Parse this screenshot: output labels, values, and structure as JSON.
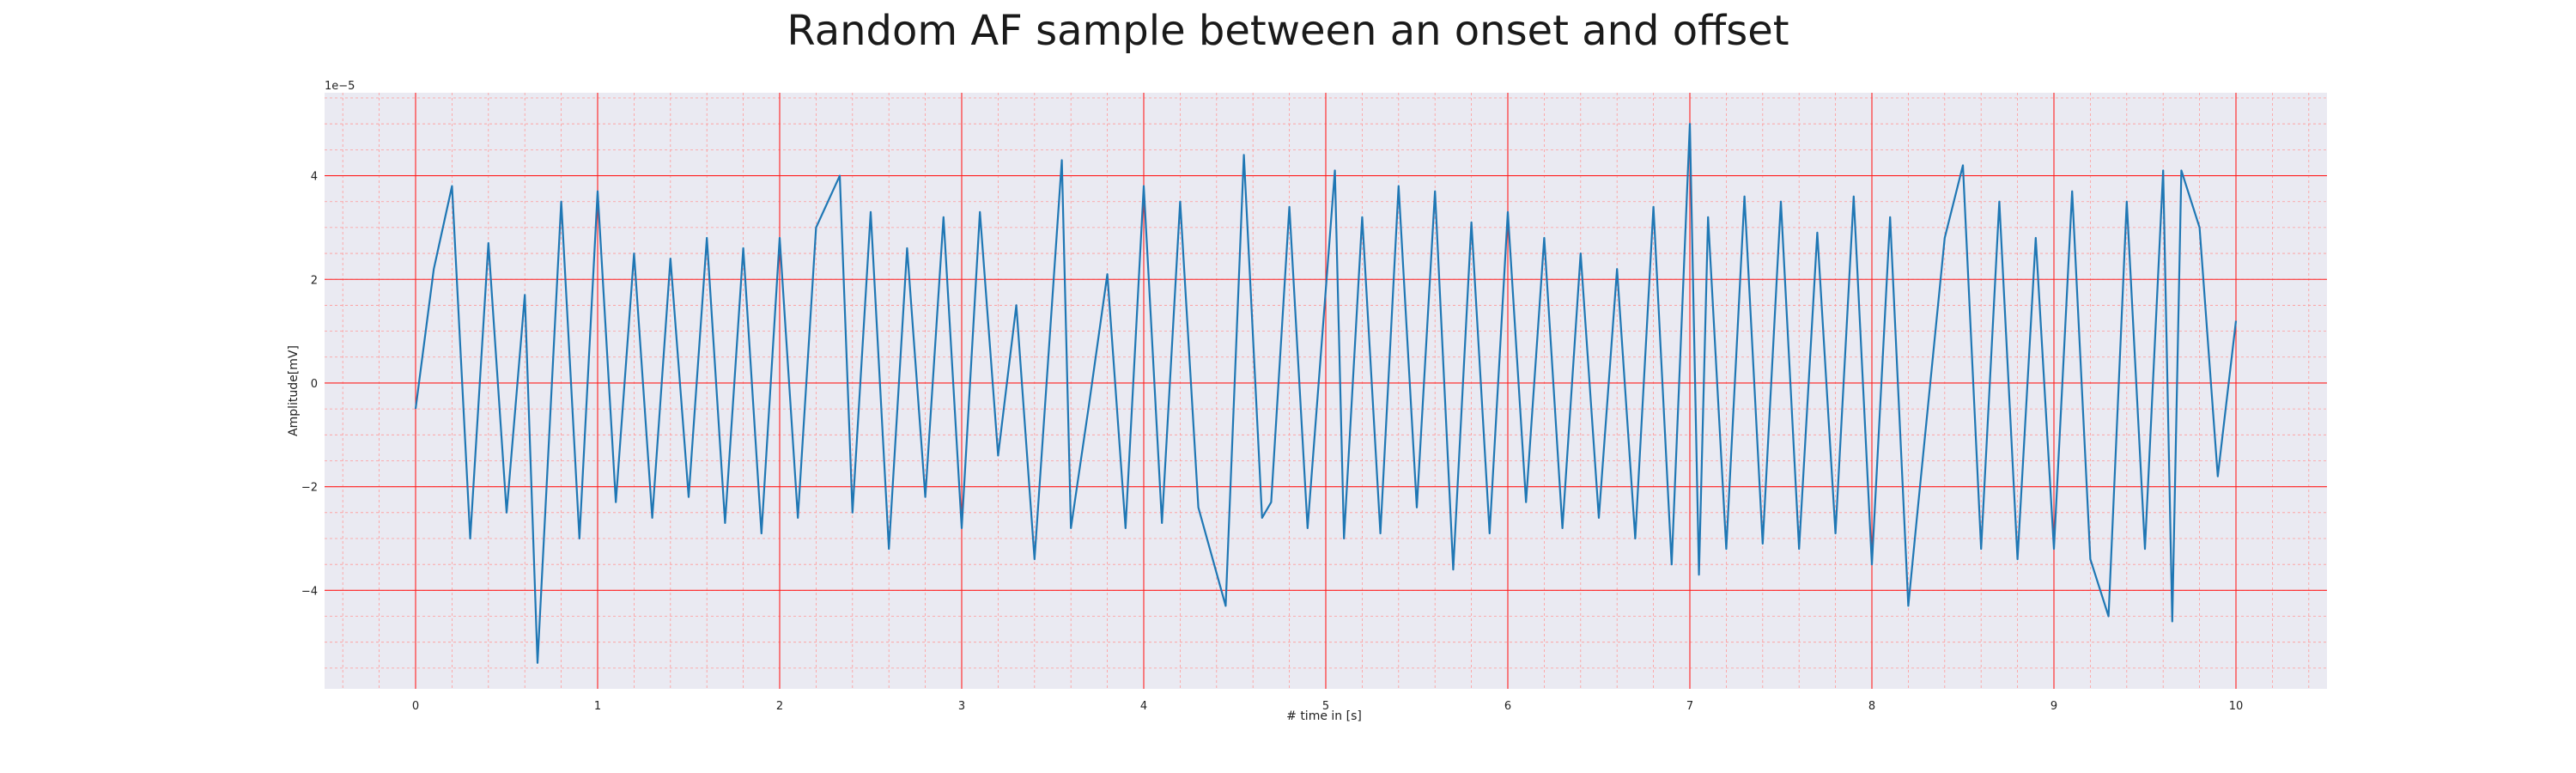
{
  "chart_data": {
    "type": "line",
    "title": "Random AF sample between an onset and offset",
    "xlabel": "# time in [s]",
    "ylabel": "Amplitude[mV]",
    "y_offset_label": "1e−5",
    "xlim": [
      -0.5,
      10.5
    ],
    "ylim": [
      -5.9,
      5.6
    ],
    "x_ticks": [
      0,
      1,
      2,
      3,
      4,
      5,
      6,
      7,
      8,
      9,
      10
    ],
    "x_tick_labels": [
      "0",
      "1",
      "2",
      "3",
      "4",
      "5",
      "6",
      "7",
      "8",
      "9",
      "10"
    ],
    "y_ticks": [
      -4,
      -2,
      0,
      2,
      4
    ],
    "y_tick_labels": [
      "−4",
      "−2",
      "0",
      "2",
      "4"
    ],
    "grid": true,
    "colors": {
      "background": "#eaeaf2",
      "major_grid": "#ff2020",
      "minor_grid": "#ff9999",
      "line": "#1f77b4"
    },
    "series": [
      {
        "values_unit": "1e-5 mV",
        "x": [
          0.0,
          0.1,
          0.2,
          0.3,
          0.4,
          0.5,
          0.6,
          0.67,
          0.8,
          0.9,
          1.0,
          1.1,
          1.2,
          1.3,
          1.4,
          1.5,
          1.6,
          1.7,
          1.8,
          1.9,
          2.0,
          2.1,
          2.2,
          2.33,
          2.4,
          2.5,
          2.6,
          2.7,
          2.8,
          2.9,
          3.0,
          3.1,
          3.2,
          3.3,
          3.4,
          3.55,
          3.6,
          3.7,
          3.8,
          3.9,
          4.0,
          4.1,
          4.2,
          4.3,
          4.45,
          4.55,
          4.65,
          4.7,
          4.8,
          4.9,
          5.05,
          5.1,
          5.2,
          5.3,
          5.4,
          5.5,
          5.6,
          5.7,
          5.8,
          5.9,
          6.0,
          6.1,
          6.2,
          6.3,
          6.4,
          6.5,
          6.6,
          6.7,
          6.8,
          6.9,
          7.0,
          7.05,
          7.1,
          7.2,
          7.3,
          7.4,
          7.5,
          7.6,
          7.7,
          7.8,
          7.9,
          8.0,
          8.1,
          8.2,
          8.25,
          8.4,
          8.5,
          8.6,
          8.7,
          8.8,
          8.9,
          9.0,
          9.1,
          9.2,
          9.3,
          9.4,
          9.5,
          9.6,
          9.65,
          9.7,
          9.8,
          9.9,
          10.0
        ],
        "values": [
          -0.5,
          2.2,
          3.8,
          -3.0,
          2.7,
          -2.5,
          1.7,
          -5.4,
          3.5,
          -3.0,
          3.7,
          -2.3,
          2.5,
          -2.6,
          2.4,
          -2.2,
          2.8,
          -2.7,
          2.6,
          -2.9,
          2.8,
          -2.6,
          3.0,
          4.0,
          -2.5,
          3.3,
          -3.2,
          2.6,
          -2.2,
          3.2,
          -2.8,
          3.3,
          -1.4,
          1.5,
          -3.4,
          4.3,
          -2.8,
          -0.4,
          2.1,
          -2.8,
          3.8,
          -2.7,
          3.5,
          -2.4,
          -4.3,
          4.4,
          -2.6,
          -2.3,
          3.4,
          -2.8,
          4.1,
          -3.0,
          3.2,
          -2.9,
          3.8,
          -2.4,
          3.7,
          -3.6,
          3.1,
          -2.9,
          3.3,
          -2.3,
          2.8,
          -2.8,
          2.5,
          -2.6,
          2.2,
          -3.0,
          3.4,
          -3.5,
          5.0,
          -3.7,
          3.2,
          -3.2,
          3.6,
          -3.1,
          3.5,
          -3.2,
          2.9,
          -2.9,
          3.6,
          -3.5,
          3.2,
          -4.3,
          -2.5,
          2.8,
          4.2,
          -3.2,
          3.5,
          -3.4,
          2.8,
          -3.2,
          3.7,
          -3.4,
          -4.5,
          3.5,
          -3.2,
          4.1,
          -4.6,
          4.1,
          3.0,
          -1.8,
          1.2
        ]
      }
    ]
  }
}
